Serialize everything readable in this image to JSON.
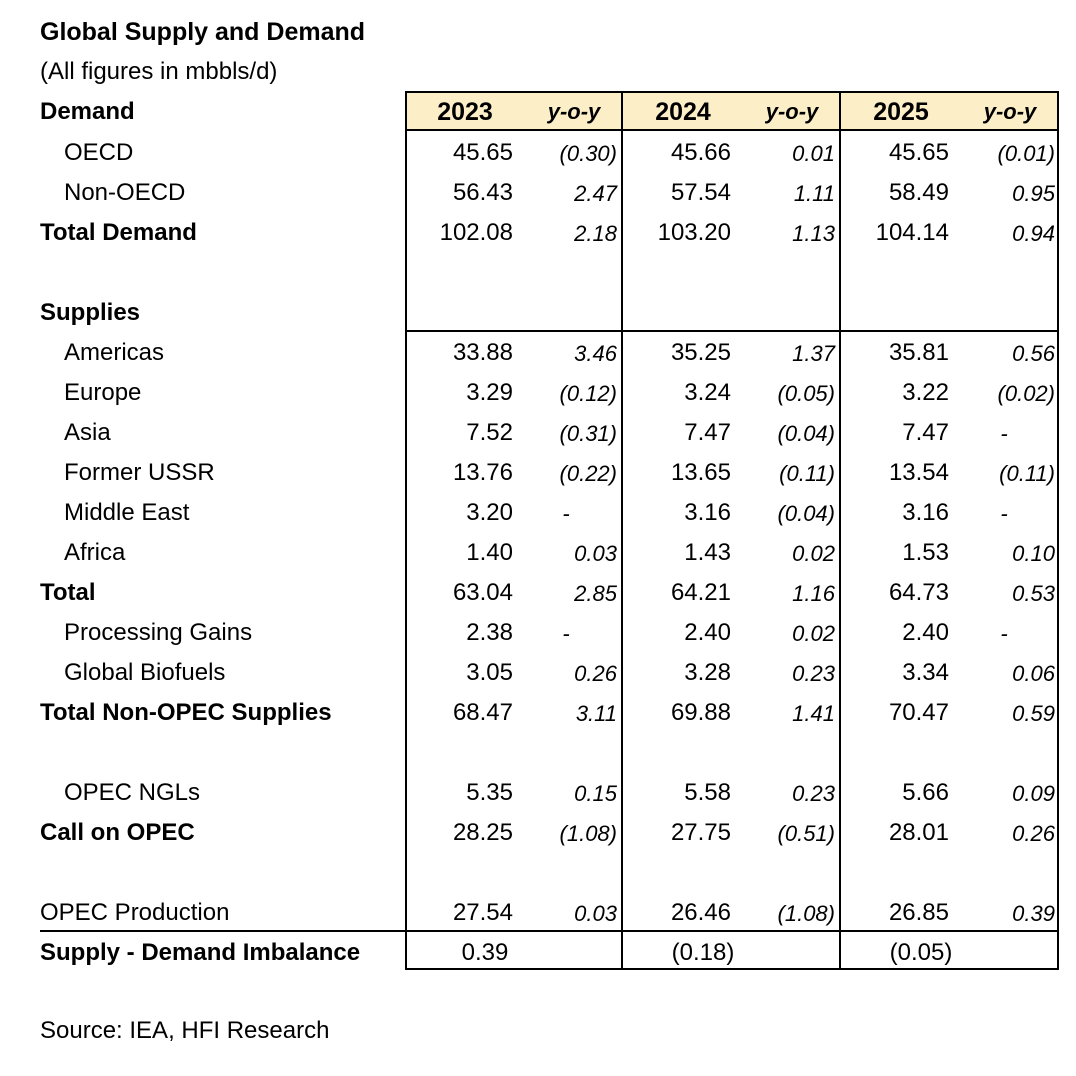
{
  "title": "Global Supply and Demand",
  "subtitle": "(All figures in mbbls/d)",
  "source": "Source: IEA, HFI Research",
  "header": {
    "demand_label": "Demand",
    "years": [
      "2023",
      "2024",
      "2025"
    ],
    "yoy_label": "y-o-y"
  },
  "colors": {
    "header_fill": "#fcefc8",
    "border": "#000000"
  },
  "rows": [
    {
      "label": "OECD",
      "style": "indent",
      "v": [
        "45.65",
        "45.66",
        "45.65"
      ],
      "y": [
        "(0.30)",
        "0.01",
        "(0.01)"
      ]
    },
    {
      "label": "Non-OECD",
      "style": "indent",
      "v": [
        "56.43",
        "57.54",
        "58.49"
      ],
      "y": [
        "2.47",
        "1.11",
        "0.95"
      ]
    },
    {
      "label": "Total Demand",
      "style": "bold",
      "v": [
        "102.08",
        "103.20",
        "104.14"
      ],
      "y": [
        "2.18",
        "1.13",
        "0.94"
      ]
    },
    {
      "label": "",
      "style": "blank",
      "v": [
        "",
        "",
        ""
      ],
      "y": [
        "",
        "",
        ""
      ]
    },
    {
      "label": "Supplies",
      "style": "bold",
      "v": [
        "",
        "",
        ""
      ],
      "y": [
        "",
        "",
        ""
      ]
    },
    {
      "label": "Americas",
      "style": "indent",
      "v": [
        "33.88",
        "35.25",
        "35.81"
      ],
      "y": [
        "3.46",
        "1.37",
        "0.56"
      ]
    },
    {
      "label": "Europe",
      "style": "indent",
      "v": [
        "3.29",
        "3.24",
        "3.22"
      ],
      "y": [
        "(0.12)",
        "(0.05)",
        "(0.02)"
      ]
    },
    {
      "label": "Asia",
      "style": "indent",
      "v": [
        "7.52",
        "7.47",
        "7.47"
      ],
      "y": [
        "(0.31)",
        "(0.04)",
        "-"
      ]
    },
    {
      "label": "Former USSR",
      "style": "indent",
      "v": [
        "13.76",
        "13.65",
        "13.54"
      ],
      "y": [
        "(0.22)",
        "(0.11)",
        "(0.11)"
      ]
    },
    {
      "label": "Middle East",
      "style": "indent",
      "v": [
        "3.20",
        "3.16",
        "3.16"
      ],
      "y": [
        "-",
        "(0.04)",
        "-"
      ]
    },
    {
      "label": "Africa",
      "style": "indent",
      "v": [
        "1.40",
        "1.43",
        "1.53"
      ],
      "y": [
        "0.03",
        "0.02",
        "0.10"
      ]
    },
    {
      "label": "Total",
      "style": "bold",
      "v": [
        "63.04",
        "64.21",
        "64.73"
      ],
      "y": [
        "2.85",
        "1.16",
        "0.53"
      ]
    },
    {
      "label": "Processing Gains",
      "style": "indent",
      "v": [
        "2.38",
        "2.40",
        "2.40"
      ],
      "y": [
        "-",
        "0.02",
        "-"
      ]
    },
    {
      "label": "Global Biofuels",
      "style": "indent",
      "v": [
        "3.05",
        "3.28",
        "3.34"
      ],
      "y": [
        "0.26",
        "0.23",
        "0.06"
      ]
    },
    {
      "label": "Total Non-OPEC Supplies",
      "style": "bold",
      "v": [
        "68.47",
        "69.88",
        "70.47"
      ],
      "y": [
        "3.11",
        "1.41",
        "0.59"
      ]
    },
    {
      "label": "",
      "style": "blank",
      "v": [
        "",
        "",
        ""
      ],
      "y": [
        "",
        "",
        ""
      ]
    },
    {
      "label": "OPEC NGLs",
      "style": "indent",
      "v": [
        "5.35",
        "5.58",
        "5.66"
      ],
      "y": [
        "0.15",
        "0.23",
        "0.09"
      ]
    },
    {
      "label": "Call on OPEC",
      "style": "bold",
      "v": [
        "28.25",
        "27.75",
        "28.01"
      ],
      "y": [
        "(1.08)",
        "(0.51)",
        "0.26"
      ]
    },
    {
      "label": "",
      "style": "blank",
      "v": [
        "",
        "",
        ""
      ],
      "y": [
        "",
        "",
        ""
      ]
    },
    {
      "label": "OPEC Production",
      "style": "plain",
      "v": [
        "27.54",
        "26.46",
        "26.85"
      ],
      "y": [
        "0.03",
        "(1.08)",
        "0.39"
      ]
    },
    {
      "label": "Supply - Demand Imbalance",
      "style": "bold",
      "v": [
        "0.39",
        "(0.18)",
        "(0.05)"
      ],
      "y": [
        "",
        "",
        ""
      ]
    }
  ]
}
